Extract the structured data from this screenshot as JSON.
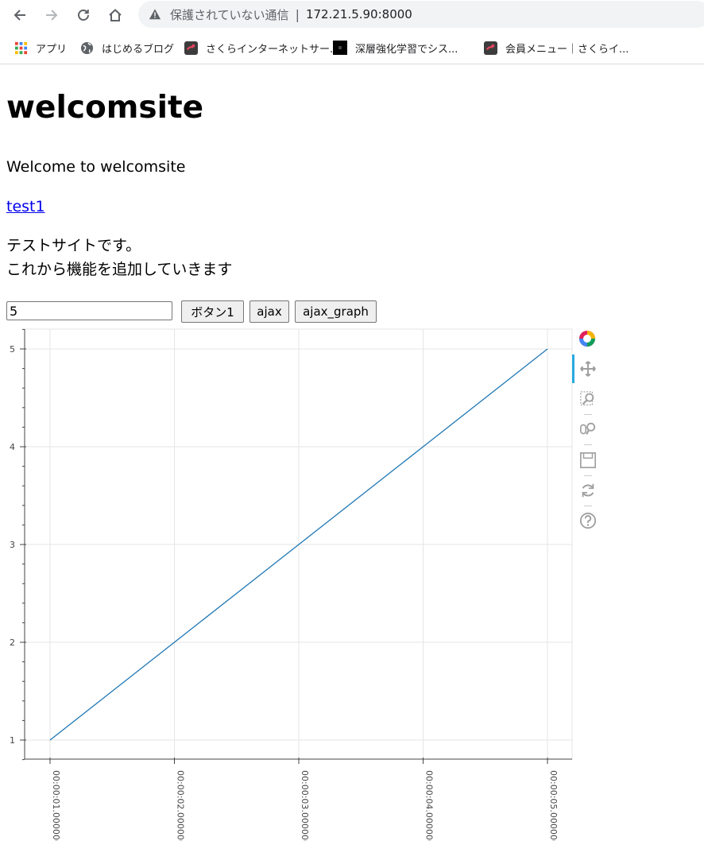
{
  "browser": {
    "omnibox": {
      "security_warning": "保護されていない通信",
      "separator": "|",
      "url": "172.21.5.90:8000"
    },
    "bookmarks": [
      {
        "label": "アプリ",
        "icon": "apps-grid-icon"
      },
      {
        "label": "はじめるブログ",
        "icon": "globe-icon"
      },
      {
        "label": "さくらインターネットサー...",
        "icon": "sakura-icon"
      },
      {
        "label": "深層強化学習でシス...",
        "icon": "black-square-icon"
      },
      {
        "label": "会員メニュー｜さくらイ...",
        "icon": "sakura-icon"
      }
    ]
  },
  "page": {
    "title": "welcomsite",
    "welcome": "Welcome to welcomsite",
    "link": "test1",
    "description_line1": "テストサイトです。",
    "description_line2": "これから機能を追加していきます",
    "input_value": "5",
    "buttons": {
      "button1": "ボタン1",
      "ajax": "ajax",
      "ajax_graph": "ajax_graph"
    }
  },
  "chart_data": {
    "type": "line",
    "x": [
      "00:00:01.000000",
      "00:00:02.000000",
      "00:00:03.000000",
      "00:00:04.000000",
      "00:00:05.000000"
    ],
    "series": [
      {
        "values": [
          1,
          2,
          3,
          4,
          5
        ],
        "color": "#1f77b4"
      }
    ],
    "x_tick_labels": [
      "00:00:01.000000",
      "00:00:02.000000",
      "00:00:03.000000",
      "00:00:04.000000",
      "00:00:05.000000"
    ],
    "y_ticks": [
      1,
      2,
      3,
      4,
      5
    ],
    "ylim": [
      0.8,
      5.2
    ],
    "grid": true,
    "title": "",
    "xlabel": "",
    "ylabel": ""
  },
  "chart_toolbar": {
    "tools": [
      "bokeh-logo-icon",
      "pan-icon",
      "box-zoom-icon",
      "wheel-zoom-icon",
      "save-icon",
      "reset-icon",
      "help-icon"
    ],
    "active_color": "#26aae1"
  }
}
